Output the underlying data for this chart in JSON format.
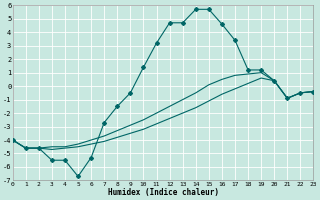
{
  "xlabel": "Humidex (Indice chaleur)",
  "bg_color": "#c8e8e0",
  "grid_color": "#ffffff",
  "line_color": "#006666",
  "xlim": [
    0,
    23
  ],
  "ylim": [
    -7,
    6
  ],
  "xticks": [
    0,
    1,
    2,
    3,
    4,
    5,
    6,
    7,
    8,
    9,
    10,
    11,
    12,
    13,
    14,
    15,
    16,
    17,
    18,
    19,
    20,
    21,
    22,
    23
  ],
  "yticks": [
    -7,
    -6,
    -5,
    -4,
    -3,
    -2,
    -1,
    0,
    1,
    2,
    3,
    4,
    5,
    6
  ],
  "curve1_x": [
    0,
    1,
    2,
    3,
    4,
    5,
    6,
    7,
    8,
    9,
    10,
    11,
    12,
    13,
    14,
    15,
    16,
    17,
    18,
    19,
    20,
    21,
    22,
    23
  ],
  "curve1_y": [
    -4.0,
    -4.6,
    -4.6,
    -5.5,
    -5.5,
    -6.7,
    -5.3,
    -2.7,
    -1.5,
    -0.5,
    1.4,
    3.2,
    4.7,
    4.7,
    5.7,
    5.7,
    4.6,
    3.4,
    1.2,
    1.2,
    0.4,
    -0.9,
    -0.5,
    -0.4
  ],
  "curve2_x": [
    0,
    1,
    2,
    3,
    4,
    5,
    6,
    7,
    8,
    9,
    10,
    11,
    12,
    13,
    14,
    15,
    16,
    17,
    18,
    19,
    20,
    21,
    22,
    23
  ],
  "curve2_y": [
    -4.0,
    -4.6,
    -4.6,
    -4.5,
    -4.5,
    -4.3,
    -4.0,
    -3.7,
    -3.3,
    -2.9,
    -2.5,
    -2.0,
    -1.5,
    -1.0,
    -0.5,
    0.1,
    0.5,
    0.8,
    0.9,
    1.0,
    0.4,
    -0.9,
    -0.5,
    -0.4
  ],
  "curve3_x": [
    0,
    1,
    2,
    3,
    4,
    5,
    6,
    7,
    8,
    9,
    10,
    11,
    12,
    13,
    14,
    15,
    16,
    17,
    18,
    19,
    20,
    21,
    22,
    23
  ],
  "curve3_y": [
    -4.0,
    -4.6,
    -4.6,
    -4.7,
    -4.6,
    -4.5,
    -4.3,
    -4.1,
    -3.8,
    -3.5,
    -3.2,
    -2.8,
    -2.4,
    -2.0,
    -1.6,
    -1.1,
    -0.6,
    -0.2,
    0.2,
    0.6,
    0.4,
    -0.9,
    -0.5,
    -0.4
  ],
  "marker_style": "D",
  "marker_size": 2.0,
  "linewidth": 0.8
}
